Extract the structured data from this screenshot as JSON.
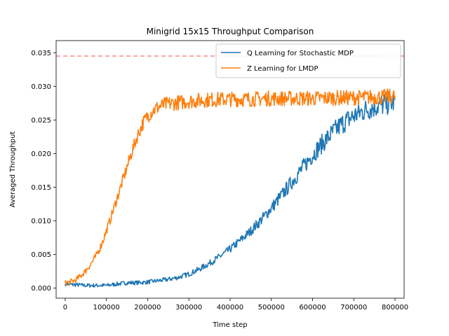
{
  "chart_data": {
    "type": "line",
    "title": "Minigrid 15x15 Throughput Comparison",
    "xlabel": "Time step",
    "ylabel": "Averaged Throughput",
    "xlim": [
      -22000,
      822000
    ],
    "ylim": [
      -0.0015,
      0.0368
    ],
    "x_ticks": [
      0,
      100000,
      200000,
      300000,
      400000,
      500000,
      600000,
      700000,
      800000
    ],
    "x_tick_labels": [
      "0",
      "100000",
      "200000",
      "300000",
      "400000",
      "500000",
      "600000",
      "700000",
      "800000"
    ],
    "y_ticks": [
      0.0,
      0.005,
      0.01,
      0.015,
      0.02,
      0.025,
      0.03,
      0.035
    ],
    "y_tick_labels": [
      "0.000",
      "0.005",
      "0.010",
      "0.015",
      "0.020",
      "0.025",
      "0.030",
      "0.035"
    ],
    "grid": false,
    "legend_position": "top-right",
    "reference_line": {
      "y": 0.0345,
      "color": "#f08080",
      "style": "dashed"
    },
    "series": [
      {
        "name": "Q Learning for Stochastic MDP",
        "color": "#1f77b4",
        "x": [
          0,
          25000,
          50000,
          75000,
          100000,
          125000,
          150000,
          175000,
          200000,
          225000,
          250000,
          275000,
          300000,
          325000,
          350000,
          375000,
          400000,
          425000,
          450000,
          475000,
          500000,
          525000,
          550000,
          575000,
          600000,
          625000,
          650000,
          675000,
          700000,
          725000,
          750000,
          775000,
          800000
        ],
        "values": [
          0.0006,
          0.0005,
          0.0004,
          0.0004,
          0.0004,
          0.0006,
          0.0008,
          0.0008,
          0.0009,
          0.0011,
          0.0013,
          0.0016,
          0.0021,
          0.0028,
          0.0037,
          0.0047,
          0.0058,
          0.0071,
          0.0085,
          0.0101,
          0.0119,
          0.0138,
          0.0158,
          0.0178,
          0.0198,
          0.0216,
          0.0232,
          0.0246,
          0.0256,
          0.0264,
          0.027,
          0.0274,
          0.0277
        ]
      },
      {
        "name": "Z Learning for LMDP",
        "color": "#ff7f0e",
        "x": [
          0,
          12500,
          25000,
          37500,
          50000,
          62500,
          75000,
          87500,
          100000,
          112500,
          125000,
          137500,
          150000,
          162500,
          175000,
          187500,
          200000,
          212500,
          225000,
          237500,
          250000,
          275000,
          300000,
          325000,
          350000,
          400000,
          450000,
          500000,
          550000,
          600000,
          650000,
          700000,
          750000,
          800000
        ],
        "values": [
          0.0008,
          0.0009,
          0.0012,
          0.0018,
          0.0026,
          0.0036,
          0.0048,
          0.0064,
          0.0085,
          0.0108,
          0.0132,
          0.0156,
          0.018,
          0.0204,
          0.0226,
          0.0244,
          0.0256,
          0.0264,
          0.0269,
          0.0272,
          0.0274,
          0.0276,
          0.0278,
          0.0279,
          0.028,
          0.0281,
          0.0281,
          0.0282,
          0.0282,
          0.0282,
          0.0283,
          0.0283,
          0.0284,
          0.0285
        ]
      }
    ]
  }
}
